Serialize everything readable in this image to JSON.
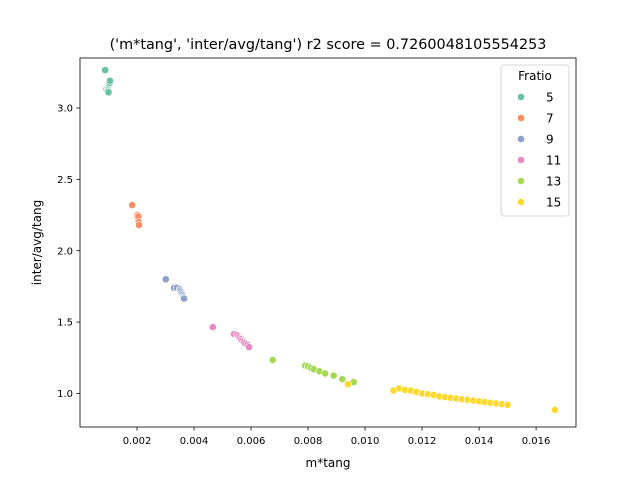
{
  "chart_data": {
    "type": "scatter",
    "title": "('m*tang', 'inter/avg/tang') r2 score = 0.7260048105554253",
    "xlabel": "m*tang",
    "ylabel": "inter/avg/tang",
    "xlim": [
      0.0,
      0.0174
    ],
    "ylim": [
      0.765,
      3.35
    ],
    "xticks": [
      0.002,
      0.004,
      0.006,
      0.008,
      0.01,
      0.012,
      0.014,
      0.016
    ],
    "xtick_labels": [
      "0.002",
      "0.004",
      "0.006",
      "0.008",
      "0.010",
      "0.012",
      "0.014",
      "0.016"
    ],
    "yticks": [
      1.0,
      1.5,
      2.0,
      2.5,
      3.0
    ],
    "ytick_labels": [
      "1.0",
      "1.5",
      "2.0",
      "2.5",
      "3.0"
    ],
    "grid": false,
    "legend": {
      "title": "Fratio",
      "placement": "top-right"
    },
    "series": [
      {
        "name": "5",
        "color": "#66c2a5",
        "points": [
          [
            0.00088,
            3.265
          ],
          [
            0.00092,
            3.13
          ],
          [
            0.00095,
            3.12
          ],
          [
            0.00097,
            3.125
          ],
          [
            0.00099,
            3.14
          ],
          [
            0.001,
            3.15
          ],
          [
            0.00101,
            3.16
          ],
          [
            0.00102,
            3.17
          ],
          [
            0.00103,
            3.18
          ],
          [
            0.00104,
            3.175
          ],
          [
            0.00105,
            3.19
          ],
          [
            0.001,
            3.11
          ]
        ]
      },
      {
        "name": "7",
        "color": "#fc8d62",
        "points": [
          [
            0.00183,
            2.32
          ],
          [
            0.00198,
            2.24
          ],
          [
            0.002,
            2.23
          ],
          [
            0.00202,
            2.25
          ],
          [
            0.00203,
            2.22
          ],
          [
            0.00204,
            2.21
          ],
          [
            0.00205,
            2.24
          ],
          [
            0.00206,
            2.2
          ],
          [
            0.00207,
            2.18
          ]
        ]
      },
      {
        "name": "9",
        "color": "#8da0cb",
        "points": [
          [
            0.00301,
            1.8
          ],
          [
            0.0033,
            1.74
          ],
          [
            0.0034,
            1.74
          ],
          [
            0.0035,
            1.73
          ],
          [
            0.00352,
            1.72
          ],
          [
            0.00355,
            1.71
          ],
          [
            0.00357,
            1.7
          ],
          [
            0.0036,
            1.69
          ],
          [
            0.00362,
            1.68
          ],
          [
            0.00363,
            1.67
          ],
          [
            0.00365,
            1.665
          ]
        ]
      },
      {
        "name": "11",
        "color": "#e78ac3",
        "points": [
          [
            0.00466,
            1.465
          ],
          [
            0.0054,
            1.415
          ],
          [
            0.0055,
            1.41
          ],
          [
            0.00556,
            1.4
          ],
          [
            0.0056,
            1.39
          ],
          [
            0.00565,
            1.38
          ],
          [
            0.0057,
            1.37
          ],
          [
            0.00575,
            1.36
          ],
          [
            0.0058,
            1.35
          ],
          [
            0.00588,
            1.34
          ],
          [
            0.00593,
            1.325
          ]
        ]
      },
      {
        "name": "13",
        "color": "#a6d854",
        "points": [
          [
            0.00676,
            1.235
          ],
          [
            0.0079,
            1.195
          ],
          [
            0.008,
            1.19
          ],
          [
            0.0081,
            1.18
          ],
          [
            0.0082,
            1.17
          ],
          [
            0.0084,
            1.155
          ],
          [
            0.0086,
            1.14
          ],
          [
            0.0089,
            1.125
          ],
          [
            0.0092,
            1.1
          ],
          [
            0.0096,
            1.08
          ]
        ]
      },
      {
        "name": "15",
        "color": "#ffd92f",
        "points": [
          [
            0.0094,
            1.065
          ],
          [
            0.011,
            1.02
          ],
          [
            0.0112,
            1.035
          ],
          [
            0.0114,
            1.025
          ],
          [
            0.0116,
            1.02
          ],
          [
            0.0118,
            1.01
          ],
          [
            0.012,
            1.0
          ],
          [
            0.0122,
            0.995
          ],
          [
            0.0124,
            0.99
          ],
          [
            0.0126,
            0.98
          ],
          [
            0.0128,
            0.975
          ],
          [
            0.013,
            0.97
          ],
          [
            0.0132,
            0.965
          ],
          [
            0.0134,
            0.96
          ],
          [
            0.0136,
            0.955
          ],
          [
            0.0138,
            0.95
          ],
          [
            0.014,
            0.945
          ],
          [
            0.0142,
            0.94
          ],
          [
            0.0144,
            0.935
          ],
          [
            0.0146,
            0.93
          ],
          [
            0.0148,
            0.925
          ],
          [
            0.015,
            0.92
          ],
          [
            0.01666,
            0.885
          ]
        ]
      }
    ]
  }
}
